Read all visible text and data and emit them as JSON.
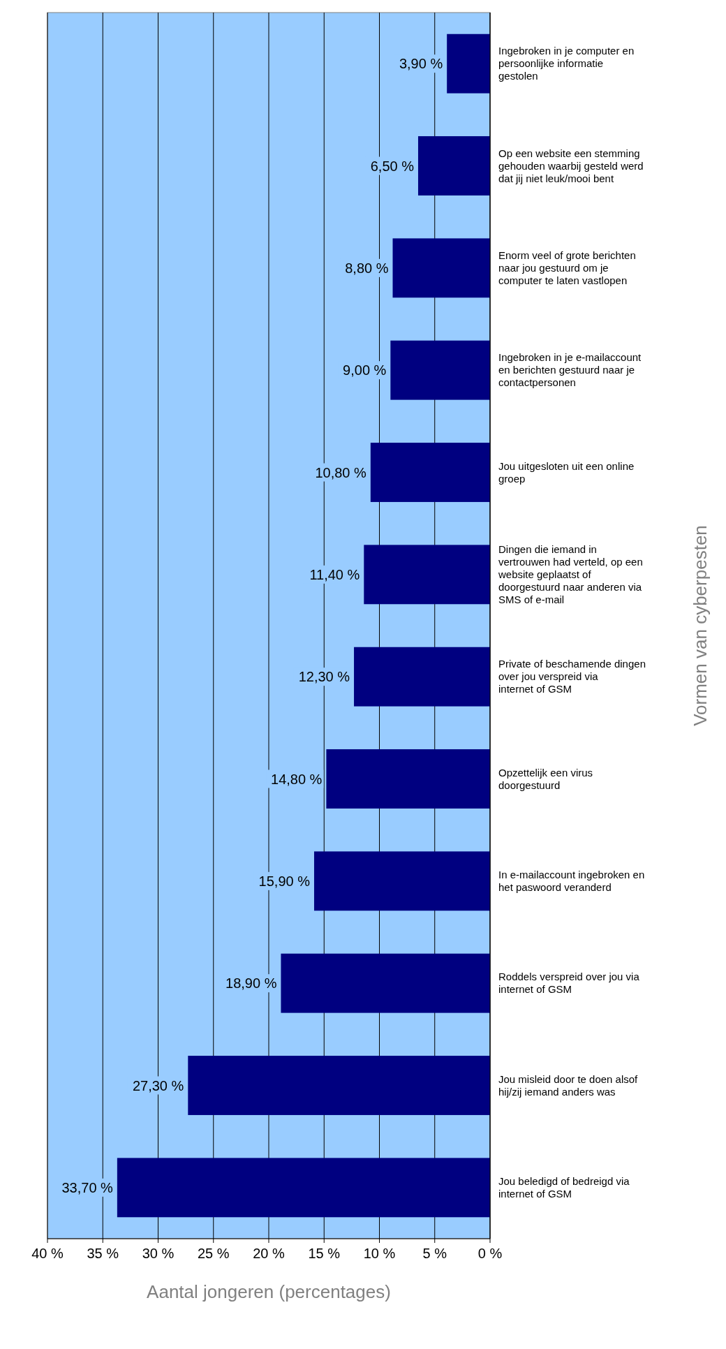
{
  "chart_data": {
    "type": "bar",
    "orientation": "horizontal",
    "xlabel": "Aantal jongeren (percentages)",
    "ylabel": "Vormen van cyberpesten",
    "categories": [
      "Ingebroken in je computer en persoonlijke informatie gestolen",
      "Op een website een stemming gehouden waarbij gesteld werd dat jij niet leuk/mooi bent",
      "Enorm veel of grote berichten naar jou gestuurd om je computer te laten vastlopen",
      "Ingebroken in je e-mailaccount en berichten gestuurd naar je contactpersonen",
      "Jou uitgesloten uit een online groep",
      "Dingen die iemand in vertrouwen had verteld, op een website geplaatst of doorgestuurd naar anderen via SMS of e-mail",
      "Private of beschamende dingen over jou verspreid via internet of GSM",
      "Opzettelijk een virus doorgestuurd",
      "In e-mailaccount ingebroken en het paswoord veranderd",
      "Roddels verspreid over jou via internet of GSM",
      "Jou misleid door te doen alsof hij/zij iemand anders was",
      "Jou beledigd of bedreigd via internet of GSM"
    ],
    "values": [
      3.9,
      6.5,
      8.8,
      9.0,
      10.8,
      11.4,
      12.3,
      14.8,
      15.9,
      18.9,
      27.3,
      33.7
    ],
    "value_labels": [
      "3,90 %",
      "6,50 %",
      "8,80 %",
      "9,00 %",
      "10,80 %",
      "11,40 %",
      "12,30 %",
      "14,80 %",
      "15,90 %",
      "18,90 %",
      "27,30 %",
      "33,70 %"
    ],
    "color": "#000080",
    "xlim": [
      40,
      0
    ],
    "xticks": [
      {
        "value": 40,
        "label": "40 %"
      },
      {
        "value": 35,
        "label": "35 %"
      },
      {
        "value": 30,
        "label": "30 %"
      },
      {
        "value": 25,
        "label": "25 %"
      },
      {
        "value": 20,
        "label": "20 %"
      },
      {
        "value": 15,
        "label": "15 %"
      },
      {
        "value": 10,
        "label": "10 %"
      },
      {
        "value": 5,
        "label": "5 %"
      },
      {
        "value": 0,
        "label": "0 %"
      }
    ],
    "grid": "x"
  }
}
